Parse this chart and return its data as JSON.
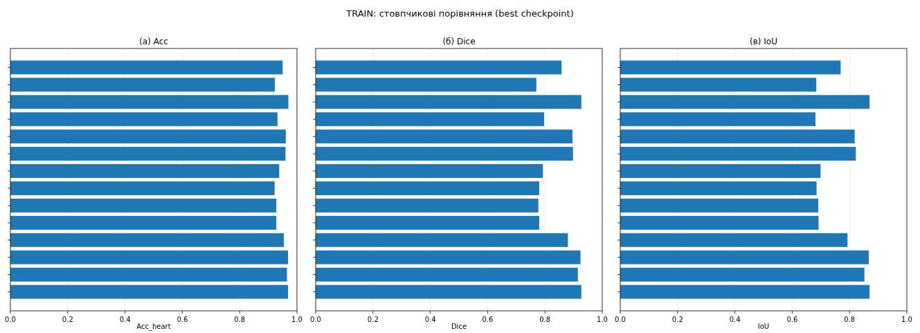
{
  "chart_data": [
    {
      "type": "bar",
      "orientation": "horizontal",
      "title": "(а) Acc",
      "xlabel": "Acc_heart",
      "annotations": [
        "TRAIN: стовпчикові порівняння (best checkpoint)"
      ],
      "categories": [
        null,
        null,
        null,
        null,
        null,
        null,
        null,
        null,
        null,
        null,
        null,
        null,
        null,
        null
      ],
      "color": "#1f77b4",
      "values": [
        0.95,
        0.923,
        0.97,
        0.932,
        0.961,
        0.96,
        0.938,
        0.922,
        0.928,
        0.928,
        0.954,
        0.969,
        0.965,
        0.969
      ],
      "xlim": [
        0,
        1
      ],
      "xticks": [
        {
          "value": 0,
          "label": "0.0"
        },
        {
          "value": 0.2,
          "label": "0.2"
        },
        {
          "value": 0.4,
          "label": "0.4"
        },
        {
          "value": 0.6,
          "label": "0.6"
        },
        {
          "value": 0.8,
          "label": "0.8"
        },
        {
          "value": 1,
          "label": "1.0"
        }
      ],
      "grid": "x",
      "tick_labels": "x"
    },
    {
      "type": "bar",
      "orientation": "horizontal",
      "title": "(б) Dice",
      "xlabel": "Dice",
      "categories": [
        null,
        null,
        null,
        null,
        null,
        null,
        null,
        null,
        null,
        null,
        null,
        null,
        null,
        null
      ],
      "color": "#1f77b4",
      "values": [
        0.858,
        0.77,
        0.927,
        0.797,
        0.896,
        0.898,
        0.793,
        0.78,
        0.777,
        0.78,
        0.88,
        0.924,
        0.915,
        0.927
      ],
      "xlim": [
        0,
        1
      ],
      "xticks": [
        {
          "value": 0,
          "label": "0.0"
        },
        {
          "value": 0.2,
          "label": "0.2"
        },
        {
          "value": 0.4,
          "label": "0.4"
        },
        {
          "value": 0.6,
          "label": "0.6"
        },
        {
          "value": 0.8,
          "label": "0.8"
        },
        {
          "value": 1,
          "label": "1.0"
        }
      ],
      "grid": "x",
      "tick_labels": "x"
    },
    {
      "type": "bar",
      "orientation": "horizontal",
      "title": "(в) IoU",
      "xlabel": "IoU",
      "categories": [
        null,
        null,
        null,
        null,
        null,
        null,
        null,
        null,
        null,
        null,
        null,
        null,
        null,
        null
      ],
      "color": "#1f77b4",
      "values": [
        0.769,
        0.684,
        0.87,
        0.681,
        0.818,
        0.822,
        0.699,
        0.685,
        0.691,
        0.692,
        0.793,
        0.867,
        0.852,
        0.87
      ],
      "xlim": [
        0,
        1
      ],
      "xticks": [
        {
          "value": 0,
          "label": "0.0"
        },
        {
          "value": 0.2,
          "label": "0.2"
        },
        {
          "value": 0.4,
          "label": "0.4"
        },
        {
          "value": 0.6,
          "label": "0.6"
        },
        {
          "value": 0.8,
          "label": "0.8"
        },
        {
          "value": 1,
          "label": "1.0"
        }
      ],
      "grid": "x",
      "tick_labels": "x"
    }
  ]
}
